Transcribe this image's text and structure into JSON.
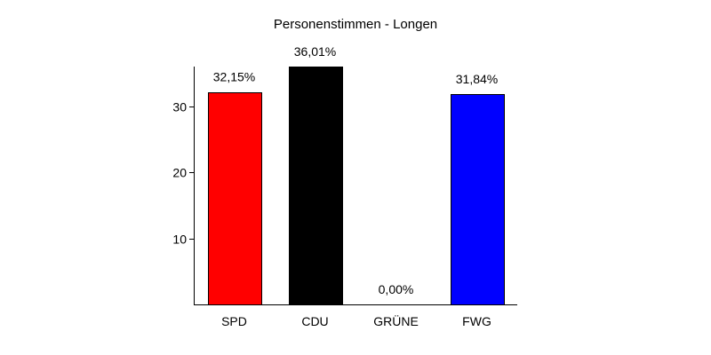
{
  "chart_data": {
    "type": "bar",
    "title": "Personenstimmen - Longen",
    "xlabel": "",
    "ylabel": "",
    "categories": [
      "SPD",
      "CDU",
      "GRÜNE",
      "FWG"
    ],
    "values": [
      32.15,
      36.01,
      0.0,
      31.84
    ],
    "value_labels": [
      "32,15%",
      "36,01%",
      "0,00%",
      "31,84%"
    ],
    "colors": [
      "#ff0000",
      "#000000",
      "#00aa00",
      "#0000ff"
    ],
    "ylim": [
      0,
      36
    ],
    "yticks": [
      10,
      20,
      30
    ],
    "ytick_labels": [
      "10",
      "20",
      "30"
    ],
    "grid": false,
    "legend": "none"
  }
}
